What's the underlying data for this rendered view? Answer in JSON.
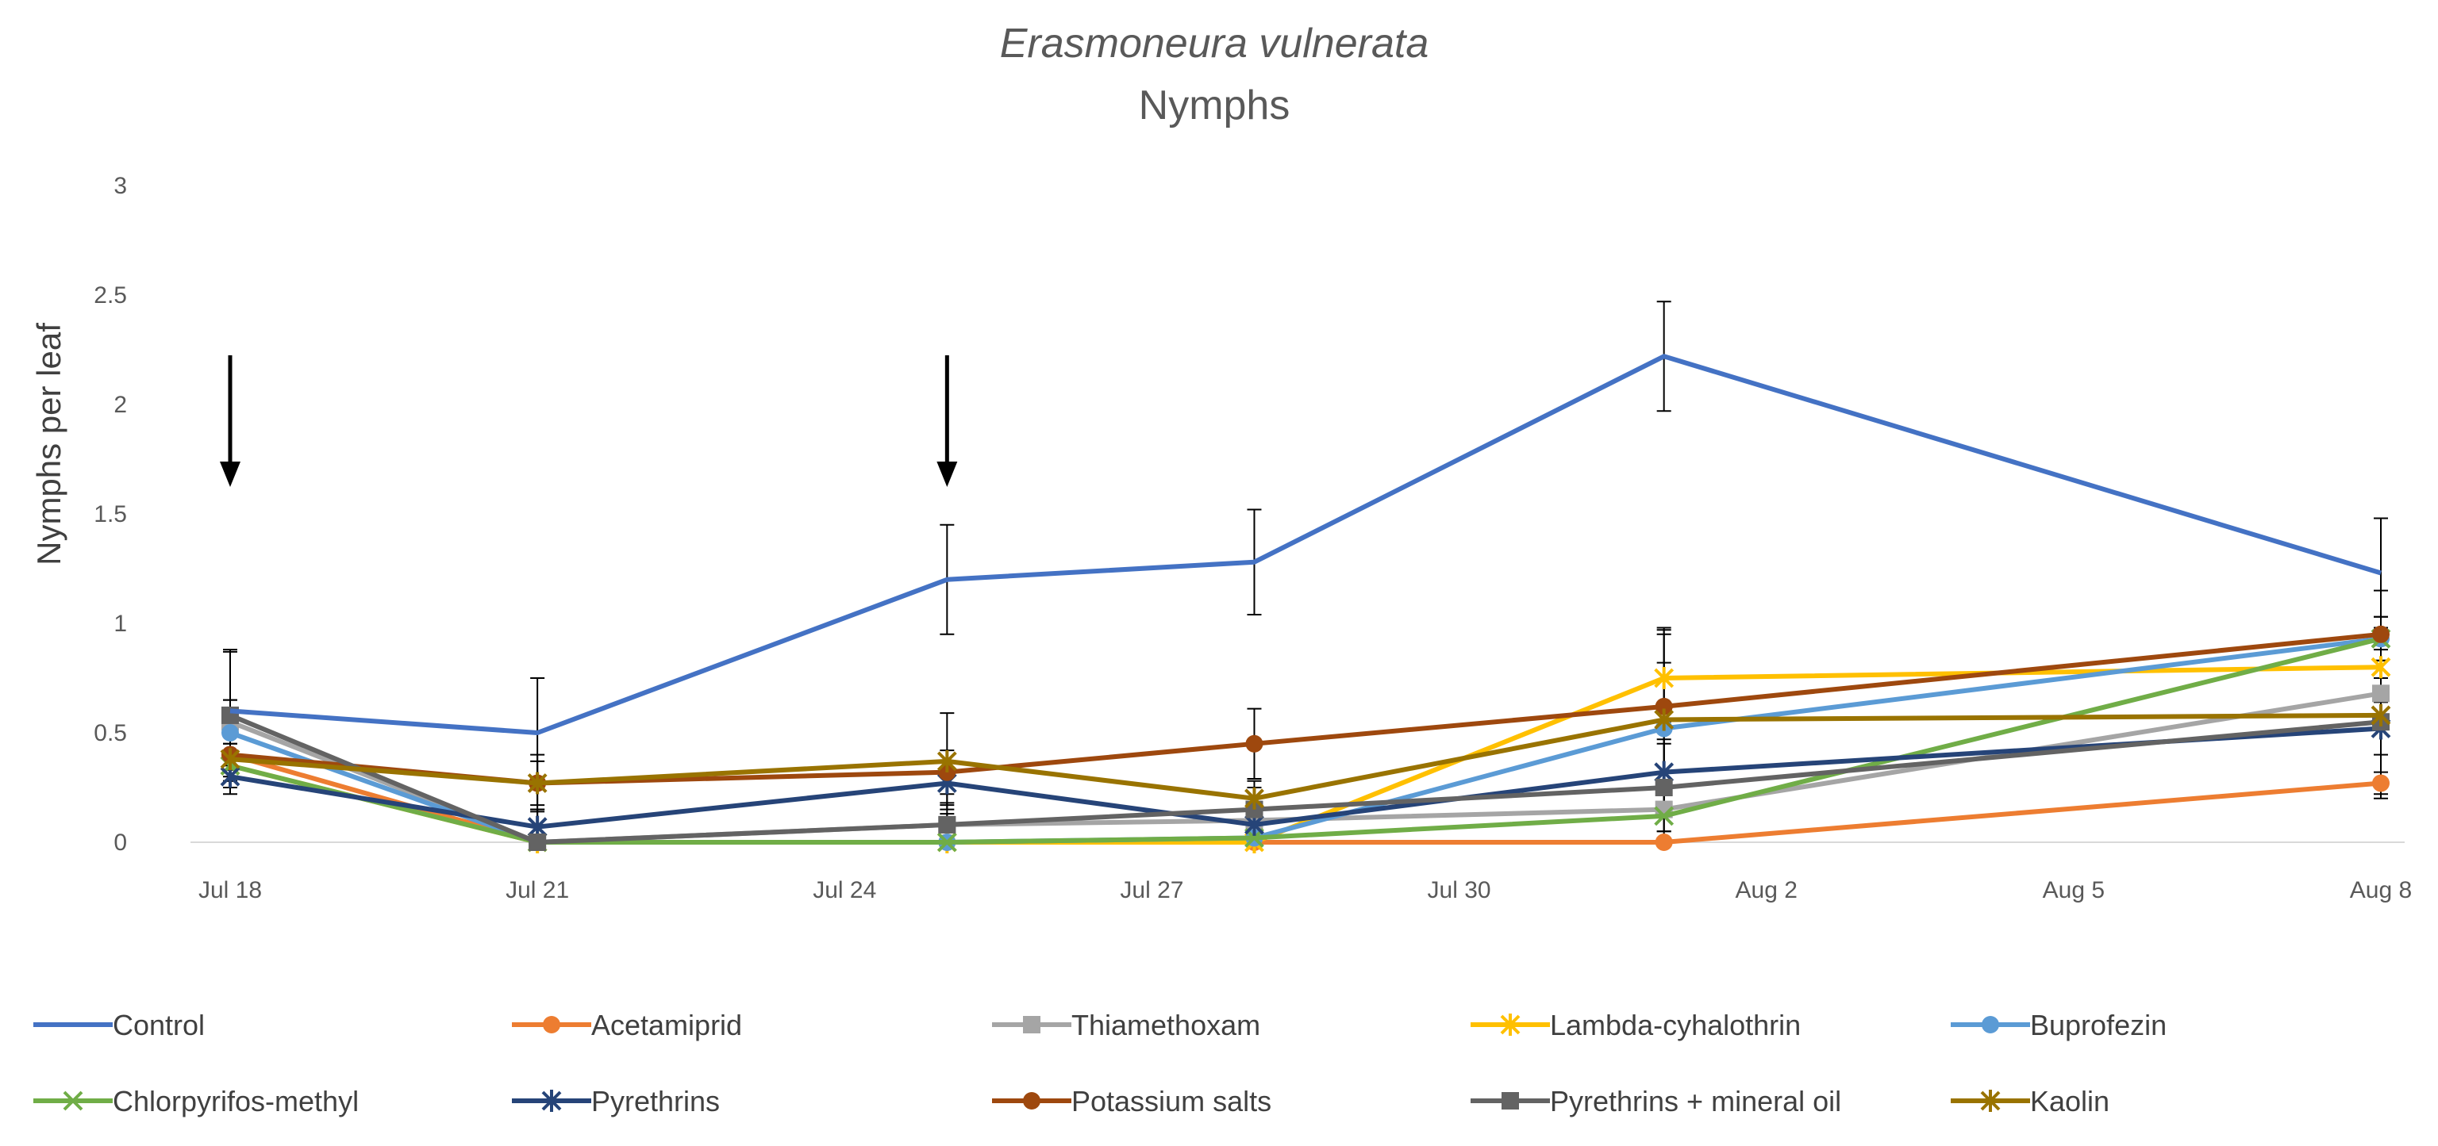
{
  "chart_data": {
    "type": "line",
    "title": "Erasmoneura vulnerata",
    "subtitle": "Nymphs",
    "xlabel": "",
    "ylabel": "Nymphs per leaf",
    "x_ticks": [
      "Jul 18",
      "Jul 21",
      "Jul 24",
      "Jul 27",
      "Jul 30",
      "Aug 2",
      "Aug 5",
      "Aug 8"
    ],
    "x_tick_days": [
      0,
      3,
      6,
      9,
      12,
      15,
      18,
      21
    ],
    "x_days": [
      0,
      3,
      7,
      10,
      14,
      21
    ],
    "ylim": [
      0,
      3
    ],
    "y_ticks": [
      "0",
      "0.5",
      "1",
      "1.5",
      "2",
      "2.5",
      "3"
    ],
    "y_tick_values": [
      0,
      0.5,
      1,
      1.5,
      2,
      2.5,
      3
    ],
    "application_arrow_days": [
      0,
      7
    ],
    "legend_position": "bottom",
    "series": [
      {
        "name": "Control",
        "color": "#4472C4",
        "marker": "none",
        "values": [
          0.6,
          0.5,
          1.2,
          1.28,
          2.22,
          1.23
        ],
        "errors": [
          0.27,
          0.25,
          0.25,
          0.24,
          0.25,
          0.25
        ]
      },
      {
        "name": "Acetamiprid",
        "color": "#ED7D31",
        "marker": "circle",
        "values": [
          0.4,
          0.0,
          0.0,
          0.0,
          0.0,
          0.27
        ],
        "errors": [
          0,
          0,
          0,
          0,
          0,
          0.05
        ]
      },
      {
        "name": "Thiamethoxam",
        "color": "#A5A5A5",
        "marker": "square",
        "values": [
          0.55,
          0.0,
          0.08,
          0.1,
          0.15,
          0.68
        ],
        "errors": [
          0.1,
          0,
          0.05,
          0.06,
          0.1,
          0.15
        ]
      },
      {
        "name": "Lambda-cyhalothrin",
        "color": "#FFC000",
        "marker": "star",
        "values": [
          0.35,
          0.0,
          0.0,
          0.0,
          0.75,
          0.8
        ],
        "errors": [
          0.1,
          0,
          0,
          0,
          0.2,
          0.15
        ]
      },
      {
        "name": "Buprofezin",
        "color": "#5B9BD5",
        "marker": "circle",
        "values": [
          0.5,
          0.0,
          0.0,
          0.02,
          0.52,
          0.93
        ],
        "errors": [
          0.15,
          0,
          0,
          0.05,
          0.3,
          0.1
        ]
      },
      {
        "name": "Chlorpyrifos-methyl",
        "color": "#70AD47",
        "marker": "x",
        "values": [
          0.35,
          0.0,
          0.0,
          0.02,
          0.12,
          0.93
        ],
        "errors": [
          0.05,
          0,
          0,
          0.03,
          0.1,
          0.1
        ]
      },
      {
        "name": "Pyrethrins",
        "color": "#264478",
        "marker": "star",
        "values": [
          0.3,
          0.07,
          0.27,
          0.08,
          0.32,
          0.52
        ],
        "errors": [
          0.08,
          0.08,
          0.1,
          0.1,
          0.15,
          0.12
        ]
      },
      {
        "name": "Potassium salts",
        "color": "#9E480E",
        "marker": "circle",
        "values": [
          0.4,
          0.27,
          0.32,
          0.45,
          0.62,
          0.95
        ],
        "errors": [
          0.15,
          0.1,
          0.1,
          0.16,
          0.35,
          0.2
        ]
      },
      {
        "name": "Pyrethrins + mineral oil",
        "color": "#636363",
        "marker": "square",
        "values": [
          0.58,
          0.0,
          0.08,
          0.15,
          0.25,
          0.55
        ],
        "errors": [
          0.3,
          0.15,
          0.1,
          0.1,
          0.2,
          0.35
        ]
      },
      {
        "name": "Kaolin",
        "color": "#997300",
        "marker": "star",
        "values": [
          0.38,
          0.27,
          0.37,
          0.2,
          0.56,
          0.58
        ],
        "errors": [
          0.1,
          0.13,
          0.22,
          0.08,
          0.42,
          0.3
        ]
      }
    ]
  }
}
